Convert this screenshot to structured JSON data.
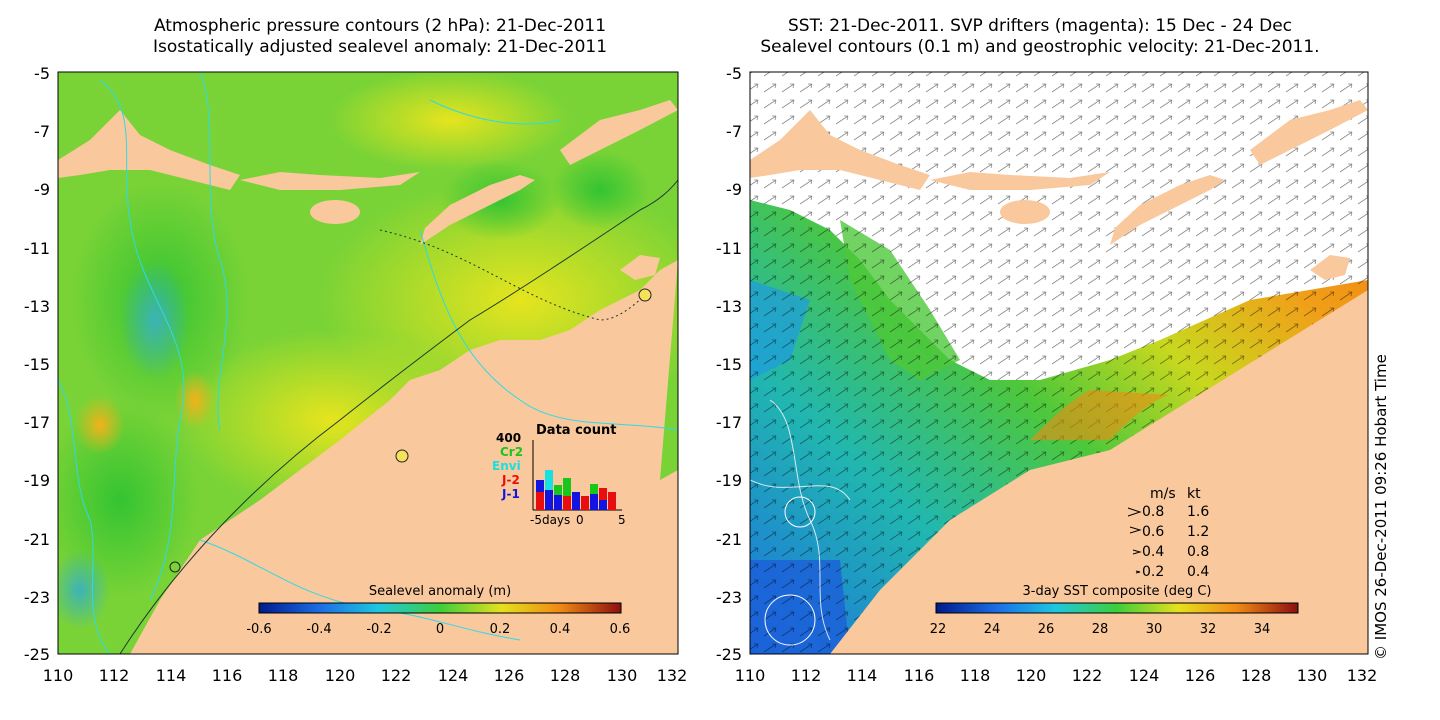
{
  "left_panel": {
    "title_line1": "Atmospheric pressure contours (2 hPa): 21-Dec-2011",
    "title_line2": "Isostatically adjusted sealevel anomaly: 21-Dec-2011",
    "y_ticks": [
      "-5",
      "-7",
      "-9",
      "-11",
      "-13",
      "-15",
      "-17",
      "-19",
      "-21",
      "-23",
      "-25"
    ],
    "x_ticks": [
      "110",
      "112",
      "114",
      "116",
      "118",
      "120",
      "122",
      "124",
      "126",
      "128",
      "130",
      "132"
    ],
    "colorbar_label": "Sealevel anomaly (m)",
    "colorbar_ticks": [
      "-0.6",
      "-0.4",
      "-0.2",
      "0",
      "0.2",
      "0.4",
      "0.6"
    ],
    "colors": {
      "land": "#f9c89c",
      "anomaly_mid": "#5fd33a",
      "anomaly_high": "#f2c61a",
      "anomaly_low": "#3fb3b0",
      "contour": "#2fd9e8"
    },
    "data_count_inset": {
      "title": "Data count",
      "max_label": "400",
      "missions": [
        {
          "name": "Cr2",
          "color": "#19c619"
        },
        {
          "name": "Envi",
          "color": "#18e0e0"
        },
        {
          "name": "J-2",
          "color": "#e80e0e"
        },
        {
          "name": "J-1",
          "color": "#1414e0"
        }
      ],
      "x_axis_label": "-5days",
      "x_tick_mid": "0",
      "x_tick_end": "5"
    }
  },
  "right_panel": {
    "title_line1": "SST: 21-Dec-2011. SVP drifters (magenta): 15 Dec - 24 Dec",
    "title_line2": "Sealevel contours (0.1 m) and geostrophic velocity: 21-Dec-2011.",
    "y_ticks": [
      "-5",
      "-7",
      "-9",
      "-11",
      "-13",
      "-15",
      "-17",
      "-19",
      "-21",
      "-23",
      "-25"
    ],
    "x_ticks": [
      "110",
      "112",
      "114",
      "116",
      "118",
      "120",
      "122",
      "124",
      "126",
      "128",
      "130",
      "132"
    ],
    "colorbar_label": "3-day SST composite (deg C)",
    "colorbar_ticks": [
      "22",
      "24",
      "26",
      "28",
      "30",
      "32",
      "34"
    ],
    "colors": {
      "land": "#f9c89c",
      "cloud": "#ffffff",
      "sst_cool": "#1e9be0",
      "sst_warm": "#f0901a"
    },
    "velocity_legend": {
      "header_ms": "m/s",
      "header_kt": "kt",
      "rows": [
        {
          "ms": "0.8",
          "kt": "1.6"
        },
        {
          "ms": "0.6",
          "kt": "1.2"
        },
        {
          "ms": "0.4",
          "kt": "0.8"
        },
        {
          "ms": "0.2",
          "kt": "0.4"
        }
      ]
    }
  },
  "credit": "© IMOS 26-Dec-2011 09:26 Hobart Time"
}
